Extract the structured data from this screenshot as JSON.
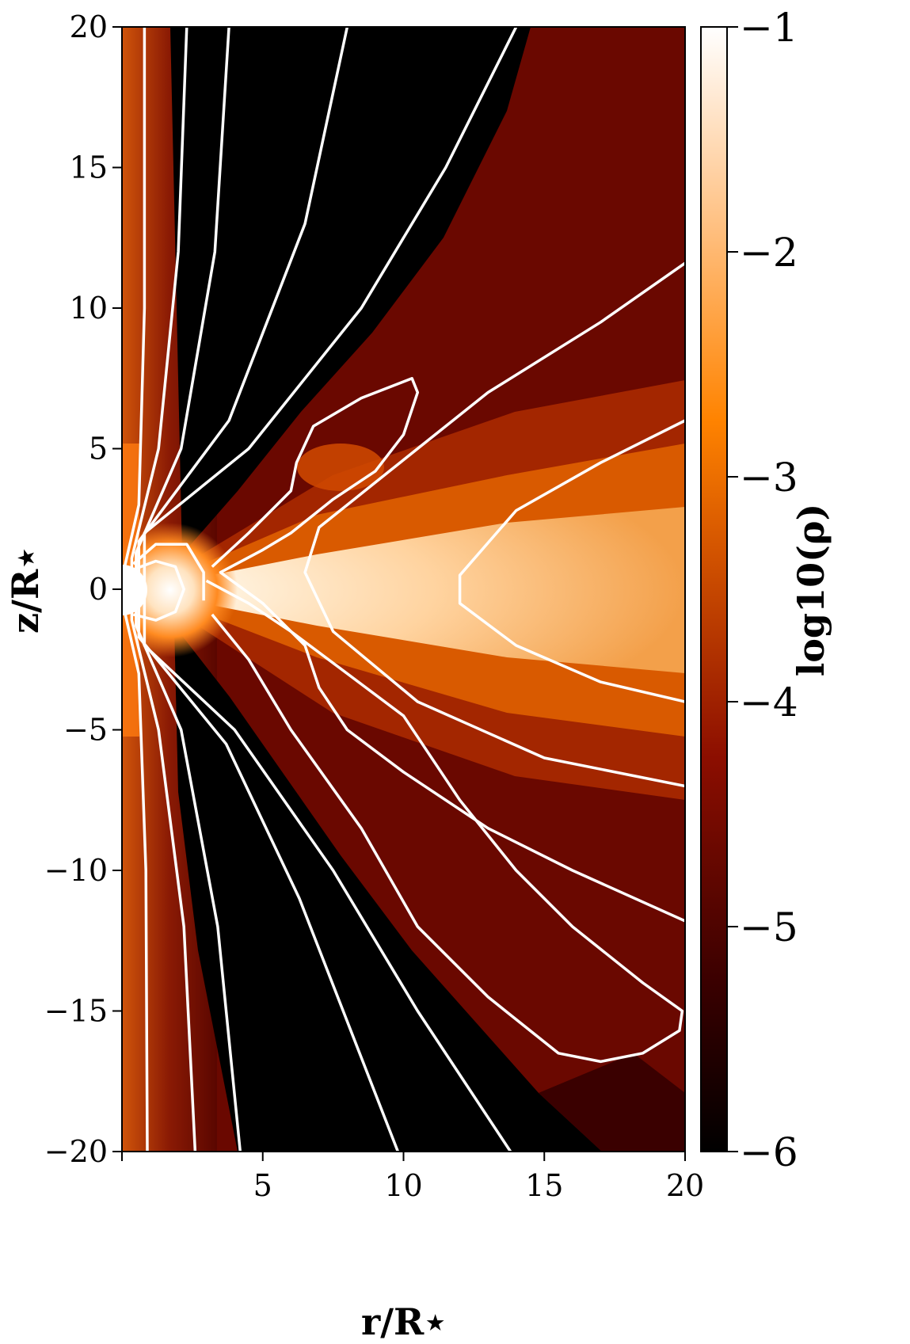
{
  "chart_data": {
    "type": "heatmap",
    "description_of_field": "log10 density with white field lines",
    "xlabel": "r/R⋆",
    "ylabel": "z/R⋆",
    "xlim": [
      0,
      20
    ],
    "ylim": [
      -20,
      20
    ],
    "xticks": [
      5,
      10,
      15,
      20
    ],
    "xtick_labels": [
      "5",
      "10",
      "15",
      "20"
    ],
    "yticks": [
      20,
      15,
      10,
      5,
      0,
      -5,
      -10,
      -15,
      -20
    ],
    "ytick_labels": [
      "20",
      "15",
      "10",
      "5",
      "0",
      "−5",
      "−10",
      "−15",
      "−20"
    ],
    "colorbar": {
      "label": "log10(ρ)",
      "range": [
        -6,
        -1
      ],
      "ticks": [
        -1,
        -2,
        -3,
        -4,
        -5,
        -6
      ],
      "tick_labels": [
        "−1",
        "−2",
        "−3",
        "−4",
        "−5",
        "−6"
      ],
      "colormap": "gist_heat"
    },
    "field_lines": [
      {
        "name": "line-1",
        "points": [
          [
            0.8,
            20
          ],
          [
            0.8,
            10
          ],
          [
            0.6,
            3
          ],
          [
            0.05,
            0.6
          ],
          [
            0.05,
            -0.6
          ],
          [
            0.6,
            -3
          ],
          [
            0.85,
            -10
          ],
          [
            0.9,
            -20
          ]
        ]
      },
      {
        "name": "line-2",
        "points": [
          [
            2.3,
            20
          ],
          [
            2.0,
            12
          ],
          [
            1.3,
            5
          ],
          [
            0.35,
            1.1
          ],
          [
            0.35,
            -1.1
          ],
          [
            1.3,
            -5
          ],
          [
            2.2,
            -12
          ],
          [
            2.6,
            -20
          ]
        ]
      },
      {
        "name": "line-3",
        "points": [
          [
            3.8,
            20
          ],
          [
            3.3,
            12
          ],
          [
            2.1,
            5
          ],
          [
            0.5,
            1.3
          ],
          [
            0.5,
            -1.3
          ],
          [
            2.1,
            -5
          ],
          [
            3.4,
            -12
          ],
          [
            4.2,
            -20
          ]
        ]
      },
      {
        "name": "line-4",
        "points": [
          [
            8.0,
            20
          ],
          [
            6.5,
            13
          ],
          [
            3.8,
            6
          ],
          [
            0.6,
            1.7
          ],
          [
            0.6,
            -1.7
          ],
          [
            3.7,
            -5.5
          ],
          [
            6.3,
            -11
          ],
          [
            9.8,
            -20
          ]
        ]
      },
      {
        "name": "line-5",
        "points": [
          [
            14.0,
            20
          ],
          [
            11.5,
            15
          ],
          [
            8.5,
            10
          ],
          [
            4.5,
            5
          ],
          [
            0.8,
            2.0
          ],
          [
            0.8,
            -2.0
          ],
          [
            4.0,
            -5
          ],
          [
            7.5,
            -10
          ],
          [
            10.5,
            -15
          ],
          [
            13.8,
            -20
          ]
        ]
      },
      {
        "name": "line-6",
        "points": [
          [
            20,
            11.6
          ],
          [
            17,
            9.5
          ],
          [
            13,
            7.0
          ],
          [
            9.5,
            4.2
          ],
          [
            7.0,
            2.2
          ],
          [
            6.5,
            0.6
          ],
          [
            7.5,
            -1.5
          ],
          [
            10.5,
            -4
          ],
          [
            15,
            -6
          ],
          [
            20,
            -7
          ]
        ]
      },
      {
        "name": "line-7",
        "points": [
          [
            20,
            6
          ],
          [
            17,
            4.5
          ],
          [
            14,
            2.8
          ],
          [
            12,
            0.5
          ],
          [
            12,
            -0.5
          ],
          [
            14,
            -2
          ],
          [
            17,
            -3.3
          ],
          [
            20,
            -4
          ]
        ]
      },
      {
        "name": "line-8",
        "points": [
          [
            3.2,
            0.8
          ],
          [
            4.5,
            2.0
          ],
          [
            6.0,
            3.5
          ],
          [
            6.2,
            4.5
          ],
          [
            6.8,
            5.8
          ],
          [
            8.5,
            6.8
          ],
          [
            10.3,
            7.5
          ],
          [
            10.5,
            7.0
          ],
          [
            10,
            5.5
          ],
          [
            9,
            4.2
          ],
          [
            7.5,
            3.2
          ],
          [
            6.0,
            2.0
          ],
          [
            5.0,
            1.4
          ],
          [
            3.5,
            0.6
          ],
          [
            5.0,
            -0.5
          ],
          [
            6.5,
            -2
          ],
          [
            7,
            -3.5
          ],
          [
            8,
            -5
          ],
          [
            10,
            -6.5
          ],
          [
            13,
            -8.5
          ],
          [
            16,
            -10
          ],
          [
            20,
            -11.8
          ]
        ]
      },
      {
        "name": "line-9",
        "points": [
          [
            3.0,
            0.3
          ],
          [
            4.5,
            -0.5
          ],
          [
            6,
            -1.5
          ],
          [
            8,
            -3
          ],
          [
            10,
            -4.5
          ],
          [
            12,
            -7.5
          ],
          [
            14,
            -10
          ],
          [
            16,
            -12
          ],
          [
            18.5,
            -14
          ],
          [
            19.9,
            -15
          ],
          [
            19.8,
            -15.7
          ],
          [
            18.5,
            -16.5
          ],
          [
            17,
            -16.8
          ],
          [
            15.5,
            -16.5
          ],
          [
            13,
            -14.5
          ],
          [
            10.5,
            -12
          ],
          [
            8.5,
            -8.5
          ],
          [
            6,
            -5
          ],
          [
            4.5,
            -2.5
          ],
          [
            3.2,
            -0.9
          ]
        ]
      },
      {
        "name": "inner-loop-1",
        "points": [
          [
            0.4,
            0.9
          ],
          [
            1.2,
            1.6
          ],
          [
            2.3,
            1.6
          ],
          [
            2.9,
            0.6
          ],
          [
            2.9,
            -0.4
          ]
        ]
      },
      {
        "name": "inner-loop-2",
        "points": [
          [
            0.4,
            0.7
          ],
          [
            1.2,
            1.0
          ],
          [
            1.9,
            0.8
          ],
          [
            2.2,
            0
          ],
          [
            1.9,
            -0.8
          ],
          [
            1.2,
            -1.1
          ],
          [
            0.4,
            -0.9
          ]
        ]
      }
    ]
  }
}
